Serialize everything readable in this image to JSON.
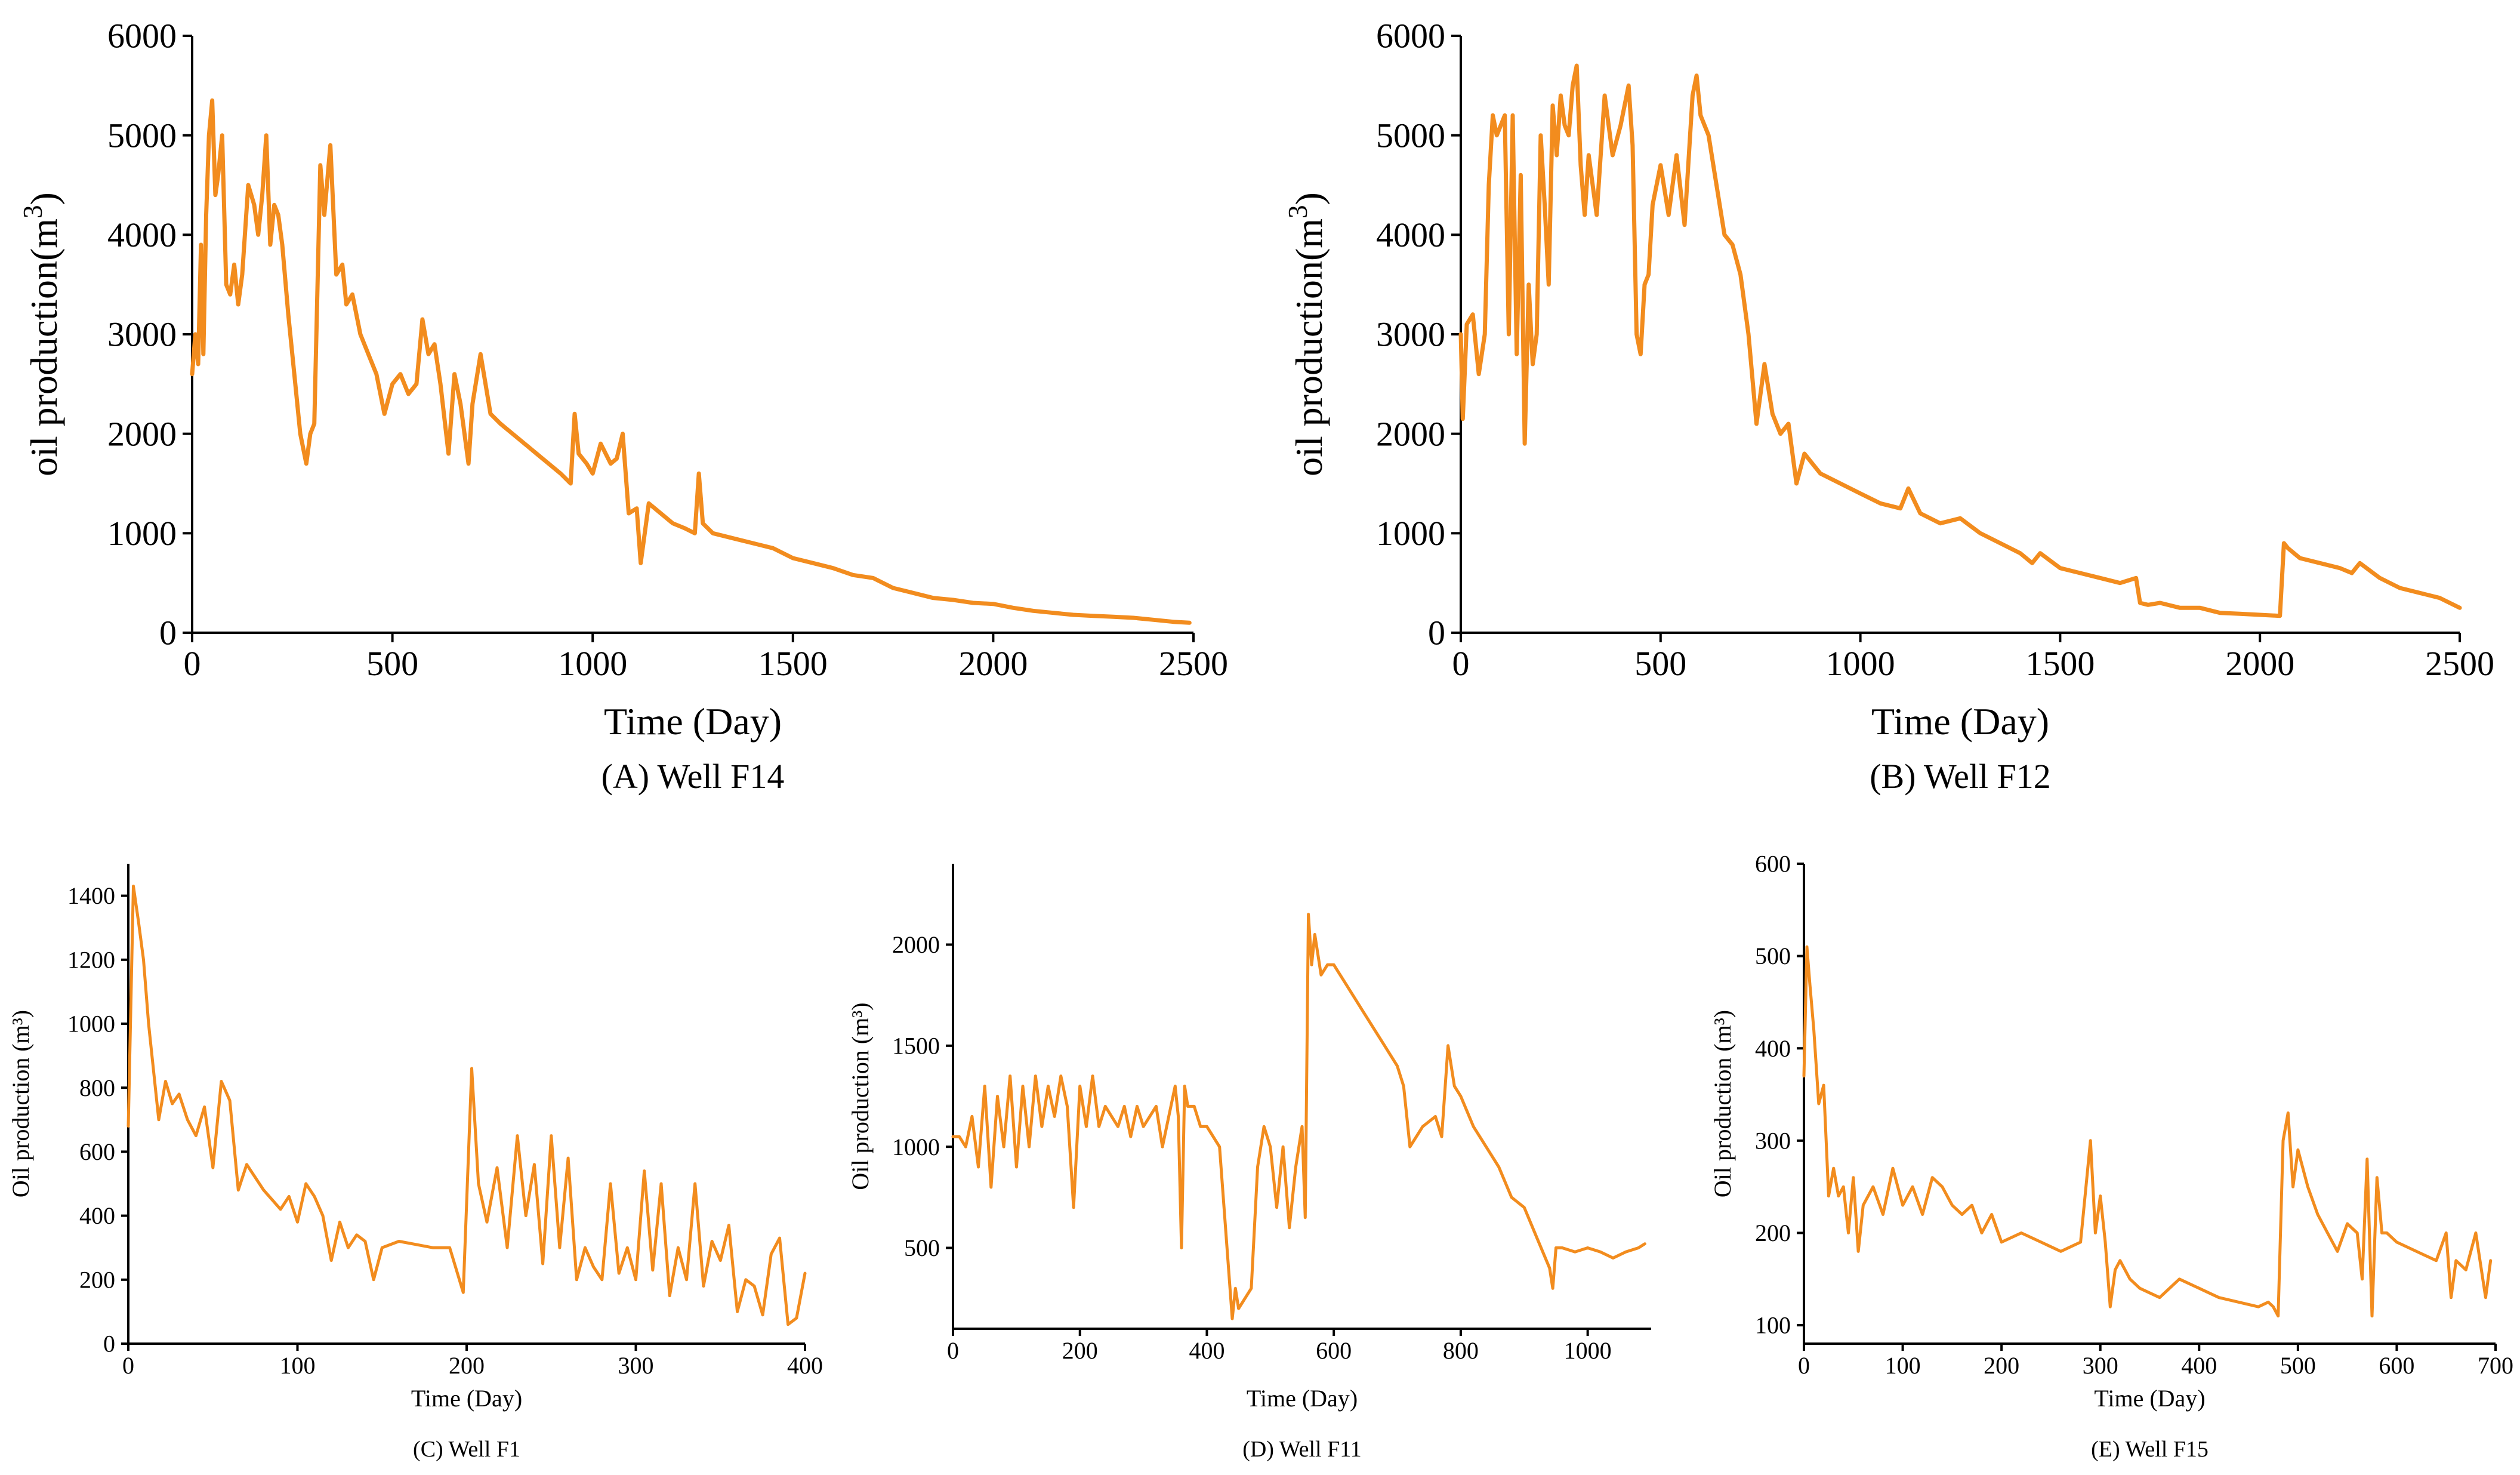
{
  "colors": {
    "series": "#F28C1E",
    "axis": "#000000"
  },
  "chart_data": [
    {
      "type": "line",
      "caption": "(A) Well F14",
      "xlabel": "Time (Day)",
      "ylabel": "oil production(m",
      "ylabel_sup": "3",
      "ylabel_close": ")",
      "xlim": [
        0,
        2500
      ],
      "ylim": [
        0,
        6000
      ],
      "xticks": [
        0,
        500,
        1000,
        1500,
        2000,
        2500
      ],
      "yticks": [
        0,
        1000,
        2000,
        3000,
        4000,
        5000,
        6000
      ],
      "grid": false,
      "series": [
        {
          "x": [
            0,
            8,
            15,
            22,
            28,
            35,
            42,
            50,
            58,
            65,
            75,
            85,
            95,
            105,
            115,
            125,
            140,
            155,
            165,
            175,
            185,
            195,
            205,
            215,
            225,
            240,
            255,
            270,
            285,
            295,
            305,
            320,
            330,
            345,
            360,
            375,
            385,
            400,
            420,
            440,
            460,
            480,
            500,
            520,
            540,
            560,
            575,
            590,
            605,
            620,
            640,
            655,
            670,
            690,
            700,
            720,
            745,
            770,
            800,
            830,
            860,
            890,
            920,
            945,
            955,
            965,
            985,
            1000,
            1020,
            1045,
            1060,
            1075,
            1090,
            1110,
            1120,
            1140,
            1170,
            1200,
            1230,
            1255,
            1265,
            1275,
            1300,
            1350,
            1400,
            1450,
            1500,
            1550,
            1600,
            1650,
            1700,
            1750,
            1800,
            1850,
            1900,
            1950,
            2000,
            2050,
            2100,
            2150,
            2200,
            2250,
            2300,
            2350,
            2400,
            2450,
            2490
          ],
          "y": [
            2600,
            3000,
            2700,
            3900,
            2800,
            4200,
            5000,
            5350,
            4400,
            4600,
            5000,
            3500,
            3400,
            3700,
            3300,
            3600,
            4500,
            4300,
            4000,
            4400,
            5000,
            3900,
            4300,
            4200,
            3900,
            3200,
            2600,
            2000,
            1700,
            2000,
            2100,
            4700,
            4200,
            4900,
            3600,
            3700,
            3300,
            3400,
            3000,
            2800,
            2600,
            2200,
            2500,
            2600,
            2400,
            2500,
            3150,
            2800,
            2900,
            2500,
            1800,
            2600,
            2300,
            1700,
            2300,
            2800,
            2200,
            2100,
            2000,
            1900,
            1800,
            1700,
            1600,
            1500,
            2200,
            1800,
            1700,
            1600,
            1900,
            1700,
            1750,
            2000,
            1200,
            1250,
            700,
            1300,
            1200,
            1100,
            1050,
            1000,
            1600,
            1100,
            1000,
            950,
            900,
            850,
            750,
            700,
            650,
            580,
            550,
            450,
            400,
            350,
            330,
            300,
            290,
            250,
            220,
            200,
            180,
            170,
            160,
            150,
            130,
            110,
            100
          ]
        }
      ]
    },
    {
      "type": "line",
      "caption": "(B) Well F12",
      "xlabel": "Time (Day)",
      "ylabel": "oil production(m",
      "ylabel_sup": "3",
      "ylabel_close": ")",
      "xlim": [
        0,
        2500
      ],
      "ylim": [
        0,
        6000
      ],
      "xticks": [
        0,
        500,
        1000,
        1500,
        2000,
        2500
      ],
      "yticks": [
        0,
        1000,
        2000,
        3000,
        4000,
        5000,
        6000
      ],
      "grid": false,
      "series": [
        {
          "x": [
            0,
            5,
            15,
            30,
            45,
            60,
            70,
            80,
            90,
            100,
            110,
            120,
            130,
            140,
            150,
            160,
            170,
            180,
            190,
            200,
            210,
            220,
            230,
            240,
            250,
            260,
            270,
            280,
            290,
            300,
            310,
            320,
            340,
            360,
            380,
            400,
            420,
            430,
            440,
            450,
            460,
            470,
            480,
            500,
            520,
            540,
            560,
            580,
            590,
            600,
            620,
            640,
            660,
            680,
            700,
            720,
            740,
            760,
            780,
            800,
            820,
            840,
            860,
            880,
            900,
            950,
            1000,
            1050,
            1100,
            1120,
            1150,
            1200,
            1250,
            1300,
            1350,
            1400,
            1430,
            1450,
            1500,
            1550,
            1600,
            1650,
            1690,
            1700,
            1720,
            1750,
            1800,
            1850,
            1900,
            1950,
            2000,
            2050,
            2060,
            2070,
            2100,
            2150,
            2200,
            2230,
            2250,
            2300,
            2350,
            2400,
            2450,
            2500
          ],
          "y": [
            3000,
            2150,
            3100,
            3200,
            2600,
            3000,
            4500,
            5200,
            5000,
            5100,
            5200,
            3000,
            5200,
            2800,
            4600,
            1900,
            3500,
            2700,
            3000,
            5000,
            4300,
            3500,
            5300,
            4800,
            5400,
            5100,
            5000,
            5500,
            5700,
            4700,
            4200,
            4800,
            4200,
            5400,
            4800,
            5100,
            5500,
            4900,
            3000,
            2800,
            3500,
            3600,
            4300,
            4700,
            4200,
            4800,
            4100,
            5400,
            5600,
            5200,
            5000,
            4500,
            4000,
            3900,
            3600,
            3000,
            2100,
            2700,
            2200,
            2000,
            2100,
            1500,
            1800,
            1700,
            1600,
            1500,
            1400,
            1300,
            1250,
            1450,
            1200,
            1100,
            1150,
            1000,
            900,
            800,
            700,
            800,
            650,
            600,
            550,
            500,
            550,
            300,
            280,
            300,
            250,
            250,
            200,
            190,
            180,
            170,
            900,
            850,
            750,
            700,
            650,
            600,
            700,
            550,
            450,
            400,
            350,
            250
          ]
        }
      ]
    },
    {
      "type": "line",
      "caption": "(C) Well F1",
      "xlabel": "Time (Day)",
      "ylabel": "Oil production (m³)",
      "xlim": [
        0,
        400
      ],
      "ylim": [
        0,
        1500
      ],
      "xticks": [
        0,
        100,
        200,
        300,
        400
      ],
      "yticks": [
        0,
        200,
        400,
        600,
        800,
        1000,
        1200,
        1400
      ],
      "grid": false,
      "series": [
        {
          "x": [
            0,
            3,
            6,
            9,
            12,
            15,
            18,
            22,
            26,
            30,
            35,
            40,
            45,
            50,
            55,
            60,
            65,
            70,
            75,
            80,
            85,
            90,
            95,
            100,
            105,
            110,
            115,
            120,
            125,
            130,
            135,
            140,
            145,
            150,
            160,
            170,
            180,
            190,
            198,
            203,
            207,
            212,
            218,
            224,
            230,
            235,
            240,
            245,
            250,
            255,
            260,
            265,
            270,
            275,
            280,
            285,
            290,
            295,
            300,
            305,
            310,
            315,
            320,
            325,
            330,
            335,
            340,
            345,
            350,
            355,
            360,
            365,
            370,
            375,
            380,
            385,
            390,
            395,
            400
          ],
          "y": [
            680,
            1430,
            1320,
            1200,
            1000,
            850,
            700,
            820,
            750,
            780,
            700,
            650,
            740,
            550,
            820,
            760,
            480,
            560,
            520,
            480,
            450,
            420,
            460,
            380,
            500,
            460,
            400,
            260,
            380,
            300,
            340,
            320,
            200,
            300,
            320,
            310,
            300,
            300,
            160,
            860,
            500,
            380,
            550,
            300,
            650,
            400,
            560,
            250,
            650,
            300,
            580,
            200,
            300,
            240,
            200,
            500,
            220,
            300,
            200,
            540,
            230,
            500,
            150,
            300,
            200,
            500,
            180,
            320,
            260,
            370,
            100,
            200,
            180,
            90,
            280,
            330,
            60,
            80,
            220
          ]
        }
      ]
    },
    {
      "type": "line",
      "caption": "(D) Well F11",
      "xlabel": "Time (Day)",
      "ylabel": "Oil production (m³)",
      "xlim": [
        0,
        1100
      ],
      "ylim": [
        100,
        2400
      ],
      "xticks": [
        0,
        200,
        400,
        600,
        800,
        1000
      ],
      "yticks": [
        500,
        1000,
        1500,
        2000
      ],
      "grid": false,
      "series": [
        {
          "x": [
            0,
            10,
            20,
            30,
            40,
            50,
            60,
            70,
            80,
            90,
            100,
            110,
            120,
            130,
            140,
            150,
            160,
            170,
            180,
            190,
            200,
            210,
            220,
            230,
            240,
            250,
            260,
            270,
            280,
            290,
            300,
            310,
            320,
            330,
            340,
            350,
            355,
            360,
            365,
            370,
            380,
            390,
            400,
            420,
            440,
            445,
            450,
            460,
            470,
            480,
            490,
            500,
            510,
            520,
            530,
            540,
            550,
            555,
            560,
            565,
            570,
            580,
            590,
            600,
            620,
            640,
            660,
            680,
            700,
            710,
            720,
            740,
            760,
            770,
            780,
            790,
            800,
            820,
            840,
            860,
            880,
            900,
            920,
            940,
            945,
            950,
            960,
            980,
            1000,
            1020,
            1040,
            1060,
            1080,
            1090
          ],
          "y": [
            1050,
            1050,
            1000,
            1150,
            900,
            1300,
            800,
            1250,
            1000,
            1350,
            900,
            1300,
            1000,
            1350,
            1100,
            1300,
            1150,
            1350,
            1200,
            700,
            1300,
            1100,
            1350,
            1100,
            1200,
            1150,
            1100,
            1200,
            1050,
            1200,
            1100,
            1150,
            1200,
            1000,
            1150,
            1300,
            1150,
            500,
            1300,
            1200,
            1200,
            1100,
            1100,
            1000,
            150,
            300,
            200,
            250,
            300,
            900,
            1100,
            1000,
            700,
            1000,
            600,
            900,
            1100,
            650,
            2150,
            1900,
            2050,
            1850,
            1900,
            1900,
            1800,
            1700,
            1600,
            1500,
            1400,
            1300,
            1000,
            1100,
            1150,
            1050,
            1500,
            1300,
            1250,
            1100,
            1000,
            900,
            750,
            700,
            550,
            400,
            300,
            500,
            500,
            480,
            500,
            480,
            450,
            480,
            500,
            520
          ]
        }
      ]
    },
    {
      "type": "line",
      "caption": "(E) Well F15",
      "xlabel": "Time (Day)",
      "ylabel": "Oil production (m³)",
      "xlim": [
        0,
        700
      ],
      "ylim": [
        80,
        600
      ],
      "xticks": [
        0,
        100,
        200,
        300,
        400,
        500,
        600,
        700
      ],
      "yticks": [
        100,
        200,
        300,
        400,
        500,
        600
      ],
      "grid": false,
      "series": [
        {
          "x": [
            0,
            3,
            6,
            10,
            15,
            20,
            25,
            30,
            35,
            40,
            45,
            50,
            55,
            60,
            70,
            80,
            90,
            100,
            110,
            120,
            130,
            140,
            150,
            160,
            170,
            180,
            190,
            200,
            220,
            240,
            260,
            280,
            290,
            295,
            300,
            305,
            310,
            315,
            320,
            325,
            330,
            340,
            360,
            380,
            400,
            420,
            440,
            460,
            470,
            475,
            480,
            485,
            490,
            495,
            500,
            510,
            520,
            530,
            540,
            550,
            560,
            565,
            570,
            575,
            580,
            585,
            590,
            600,
            620,
            640,
            650,
            655,
            660,
            670,
            680,
            690,
            695
          ],
          "y": [
            370,
            510,
            470,
            420,
            340,
            360,
            240,
            270,
            240,
            250,
            200,
            260,
            180,
            230,
            250,
            220,
            270,
            230,
            250,
            220,
            260,
            250,
            230,
            220,
            230,
            200,
            220,
            190,
            200,
            190,
            180,
            190,
            300,
            200,
            240,
            190,
            120,
            160,
            170,
            160,
            150,
            140,
            130,
            150,
            140,
            130,
            125,
            120,
            125,
            120,
            110,
            300,
            330,
            250,
            290,
            250,
            220,
            200,
            180,
            210,
            200,
            150,
            280,
            110,
            260,
            200,
            200,
            190,
            180,
            170,
            200,
            130,
            170,
            160,
            200,
            130,
            170
          ]
        }
      ]
    }
  ]
}
